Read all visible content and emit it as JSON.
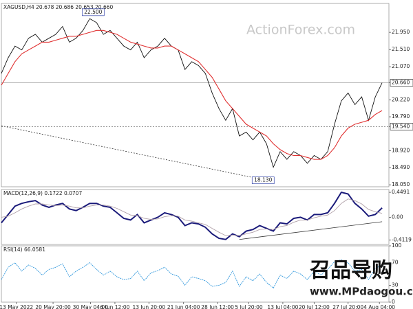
{
  "watermarks": [
    "ActionForex.com",
    "召品导购",
    "www.MPdaogou.com"
  ],
  "chart_data": [
    {
      "type": "line",
      "title": "XAGUSD,H4  20.678 20.686 20.653 20.660",
      "xlim": [
        0,
        57
      ],
      "ylim": [
        18.0,
        22.69
      ],
      "yticks": [
        {
          "value": 21.95,
          "label": "21.950"
        },
        {
          "value": 21.51,
          "label": "21.510"
        },
        {
          "value": 21.07,
          "label": "21.070"
        },
        {
          "value": 20.66,
          "label": "20.660"
        },
        {
          "value": 20.22,
          "label": "20.220"
        },
        {
          "value": 19.79,
          "label": "19.790"
        },
        {
          "value": 19.54,
          "label": "19.540"
        },
        {
          "value": 18.92,
          "label": "18.920"
        },
        {
          "value": 18.49,
          "label": "18.490"
        },
        {
          "value": 18.05,
          "label": "18.050"
        }
      ],
      "levels": [
        20.66,
        19.54
      ],
      "annotations": [
        {
          "label": "22.500",
          "x": 13.5,
          "value": 22.5
        },
        {
          "label": "18.130",
          "x": 38.5,
          "value": 18.13
        }
      ],
      "trendline": {
        "x": [
          0,
          40
        ],
        "values": [
          19.56,
          18.13
        ],
        "color": "#333333"
      },
      "series": [
        {
          "color": "#111111",
          "x": [
            0,
            1,
            2,
            3,
            4,
            5,
            6,
            7,
            8,
            9,
            10,
            11,
            12,
            13,
            14,
            15,
            16,
            17,
            18,
            19,
            20,
            21,
            22,
            23,
            24,
            25,
            26,
            27,
            28,
            29,
            30,
            31,
            32,
            33,
            34,
            35,
            36,
            37,
            38,
            39,
            40,
            41,
            42,
            43,
            44,
            45,
            46,
            47,
            48,
            49,
            50,
            51,
            52,
            53,
            54,
            55,
            56
          ],
          "values": [
            20.9,
            21.3,
            21.6,
            21.5,
            21.8,
            21.9,
            21.7,
            21.8,
            21.9,
            22.1,
            21.7,
            21.8,
            22.0,
            22.3,
            22.2,
            21.9,
            22.0,
            21.8,
            21.6,
            21.5,
            21.7,
            21.3,
            21.5,
            21.6,
            21.8,
            21.6,
            21.5,
            21.0,
            21.2,
            21.1,
            20.9,
            20.4,
            20.0,
            19.7,
            20.0,
            19.3,
            19.4,
            19.2,
            19.4,
            19.1,
            18.5,
            18.9,
            18.7,
            18.9,
            18.8,
            18.6,
            18.8,
            18.7,
            18.9,
            19.6,
            20.2,
            20.4,
            20.1,
            20.3,
            19.7,
            20.3,
            20.66
          ]
        },
        {
          "color": "#e03030",
          "x": [
            0,
            1,
            2,
            3,
            4,
            5,
            6,
            7,
            8,
            9,
            10,
            11,
            12,
            13,
            14,
            15,
            16,
            17,
            18,
            19,
            20,
            21,
            22,
            23,
            24,
            25,
            26,
            27,
            28,
            29,
            30,
            31,
            32,
            33,
            34,
            35,
            36,
            37,
            38,
            39,
            40,
            41,
            42,
            43,
            44,
            45,
            46,
            47,
            48,
            49,
            50,
            51,
            52,
            53,
            54,
            55,
            56
          ],
          "values": [
            20.6,
            20.9,
            21.2,
            21.4,
            21.5,
            21.6,
            21.7,
            21.7,
            21.75,
            21.8,
            21.85,
            21.85,
            21.9,
            21.95,
            22.0,
            22.0,
            21.95,
            21.9,
            21.8,
            21.7,
            21.65,
            21.6,
            21.55,
            21.55,
            21.6,
            21.6,
            21.5,
            21.4,
            21.3,
            21.2,
            21.0,
            20.8,
            20.5,
            20.2,
            20.0,
            19.8,
            19.6,
            19.5,
            19.4,
            19.3,
            19.1,
            18.95,
            18.85,
            18.8,
            18.8,
            18.75,
            18.7,
            18.7,
            18.8,
            19.0,
            19.3,
            19.5,
            19.6,
            19.65,
            19.7,
            19.85,
            19.95
          ]
        }
      ]
    },
    {
      "type": "line",
      "title": "MACD(12,26,9) 0.1722 0.0707",
      "xlim": [
        0,
        57
      ],
      "ylim": [
        -0.49,
        0.5
      ],
      "yticks": [
        0.4491,
        {
          "value": 0,
          "label": "0.00"
        },
        -0.4119
      ],
      "trendline": {
        "x": [
          35,
          56
        ],
        "values": [
          -0.4,
          -0.08
        ],
        "color": "#333333"
      },
      "series": [
        {
          "color": "#1a1a7a",
          "x": [
            0,
            1,
            2,
            3,
            4,
            5,
            6,
            7,
            8,
            9,
            10,
            11,
            12,
            13,
            14,
            15,
            16,
            17,
            18,
            19,
            20,
            21,
            22,
            23,
            24,
            25,
            26,
            27,
            28,
            29,
            30,
            31,
            32,
            33,
            34,
            35,
            36,
            37,
            38,
            39,
            40,
            41,
            42,
            43,
            44,
            45,
            46,
            47,
            48,
            49,
            50,
            51,
            52,
            53,
            54,
            55,
            56
          ],
          "values": [
            -0.1,
            0.05,
            0.2,
            0.25,
            0.28,
            0.3,
            0.22,
            0.18,
            0.22,
            0.25,
            0.15,
            0.12,
            0.18,
            0.25,
            0.25,
            0.2,
            0.18,
            0.08,
            -0.02,
            -0.05,
            0.05,
            -0.1,
            -0.05,
            0.0,
            0.08,
            0.05,
            0.0,
            -0.15,
            -0.1,
            -0.12,
            -0.18,
            -0.3,
            -0.38,
            -0.4,
            -0.3,
            -0.35,
            -0.25,
            -0.22,
            -0.15,
            -0.2,
            -0.25,
            -0.1,
            -0.12,
            -0.02,
            0.0,
            -0.05,
            0.05,
            0.05,
            0.08,
            0.25,
            0.45,
            0.42,
            0.25,
            0.15,
            0.02,
            0.05,
            0.17
          ]
        },
        {
          "color": "#b0a0a8",
          "x": [
            0,
            1,
            2,
            3,
            4,
            5,
            6,
            7,
            8,
            9,
            10,
            11,
            12,
            13,
            14,
            15,
            16,
            17,
            18,
            19,
            20,
            21,
            22,
            23,
            24,
            25,
            26,
            27,
            28,
            29,
            30,
            31,
            32,
            33,
            34,
            35,
            36,
            37,
            38,
            39,
            40,
            41,
            42,
            43,
            44,
            45,
            46,
            47,
            48,
            49,
            50,
            51,
            52,
            53,
            54,
            55,
            56
          ],
          "values": [
            0.0,
            0.02,
            0.08,
            0.15,
            0.2,
            0.24,
            0.24,
            0.22,
            0.21,
            0.22,
            0.2,
            0.17,
            0.17,
            0.2,
            0.22,
            0.22,
            0.2,
            0.16,
            0.1,
            0.04,
            0.03,
            -0.02,
            -0.04,
            -0.03,
            0.01,
            0.03,
            0.02,
            -0.05,
            -0.07,
            -0.1,
            -0.13,
            -0.2,
            -0.27,
            -0.33,
            -0.32,
            -0.33,
            -0.3,
            -0.27,
            -0.22,
            -0.21,
            -0.22,
            -0.17,
            -0.15,
            -0.09,
            -0.05,
            -0.05,
            -0.01,
            0.02,
            0.04,
            0.12,
            0.25,
            0.33,
            0.3,
            0.24,
            0.14,
            0.1,
            0.07
          ]
        }
      ]
    },
    {
      "type": "line",
      "title": "RSI(14) 66.0581",
      "xlim": [
        0,
        57
      ],
      "ylim": [
        0,
        100
      ],
      "yticks": [
        100,
        70,
        30,
        0
      ],
      "xticks": [
        {
          "value": 2.2,
          "label": "13 May 2022"
        },
        {
          "value": 7.6,
          "label": "20 May 20:00"
        },
        {
          "value": 13.1,
          "label": "30 May 04:00"
        },
        {
          "value": 16.7,
          "label": "6 Jun 12:00"
        },
        {
          "value": 21.7,
          "label": "13 Jun 20:00"
        },
        {
          "value": 26.8,
          "label": "21 Jun 04:00"
        },
        {
          "value": 31.8,
          "label": "28 Jun 12:00"
        },
        {
          "value": 36.4,
          "label": "5 Jul 20:00"
        },
        {
          "value": 41.4,
          "label": "13 Jul 04:00"
        },
        {
          "value": 46.0,
          "label": "20 Jul 12:00"
        },
        {
          "value": 51.0,
          "label": "27 Jul 20:00"
        },
        {
          "value": 55.6,
          "label": "4 Aug 04:00"
        }
      ],
      "series": [
        {
          "color": "#3399dd",
          "x": [
            0,
            1,
            2,
            3,
            4,
            5,
            6,
            7,
            8,
            9,
            10,
            11,
            12,
            13,
            14,
            15,
            16,
            17,
            18,
            19,
            20,
            21,
            22,
            23,
            24,
            25,
            26,
            27,
            28,
            29,
            30,
            31,
            32,
            33,
            34,
            35,
            36,
            37,
            38,
            39,
            40,
            41,
            42,
            43,
            44,
            45,
            46,
            47,
            48,
            49,
            50,
            51,
            52,
            53,
            54,
            55,
            56
          ],
          "values": [
            40,
            62,
            70,
            55,
            66,
            60,
            48,
            58,
            62,
            68,
            45,
            55,
            62,
            70,
            58,
            48,
            55,
            45,
            40,
            42,
            55,
            38,
            52,
            56,
            62,
            50,
            46,
            30,
            45,
            42,
            38,
            28,
            30,
            35,
            55,
            28,
            45,
            38,
            50,
            35,
            25,
            48,
            42,
            55,
            50,
            40,
            55,
            48,
            58,
            72,
            75,
            70,
            55,
            58,
            40,
            60,
            66
          ]
        }
      ]
    }
  ]
}
